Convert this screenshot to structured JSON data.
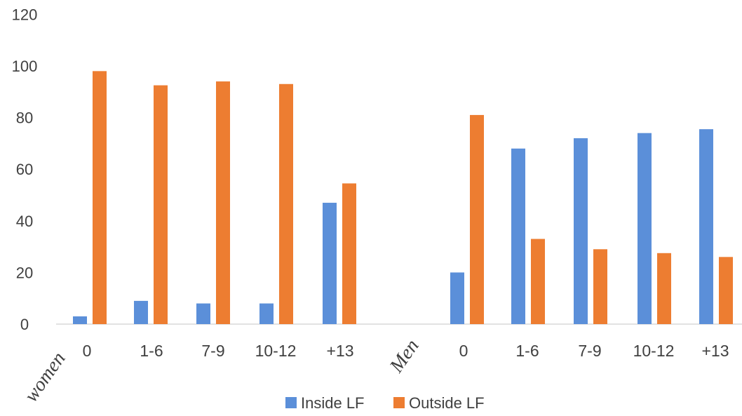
{
  "chart_data": {
    "type": "bar",
    "title": "",
    "xlabel": "",
    "ylabel": "",
    "ylim": [
      0,
      120
    ],
    "yticks": [
      0,
      20,
      40,
      60,
      80,
      100,
      120
    ],
    "grid": false,
    "legend_position": "bottom",
    "groups": [
      {
        "label": "women",
        "categories": [
          "0",
          "1-6",
          "7-9",
          "10-12",
          "+13"
        ]
      },
      {
        "label": "Men",
        "categories": [
          "0",
          "1-6",
          "7-9",
          "10-12",
          "+13"
        ]
      }
    ],
    "series": [
      {
        "name": "Inside LF",
        "color": "#5B8FD9",
        "values": [
          3,
          9,
          8,
          8,
          47,
          20,
          68,
          72,
          74,
          75.5
        ]
      },
      {
        "name": "Outside LF",
        "color": "#ED7D31",
        "values": [
          98,
          92.5,
          94,
          93,
          54.5,
          81,
          33,
          29,
          27.5,
          26
        ]
      }
    ]
  }
}
